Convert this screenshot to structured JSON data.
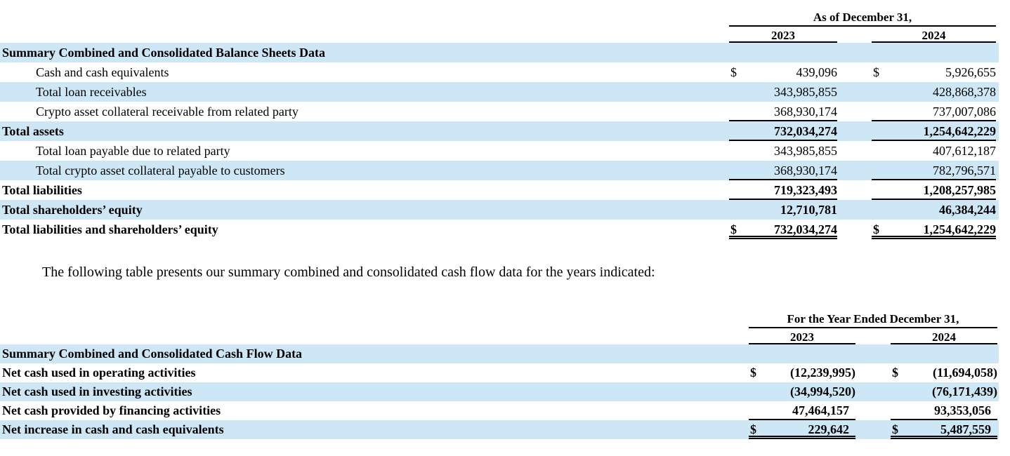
{
  "page": {
    "background": "#ffffff",
    "stripe_color": "#cde7f6",
    "text_color": "#000000"
  },
  "paragraph": "The following table presents our summary combined and consolidated cash flow data for the years indicated:",
  "balance_sheet": {
    "period_title": "As of December 31,",
    "columns": [
      "2023",
      "2024"
    ],
    "paren_align": false,
    "rows": [
      {
        "label": "Summary Combined and Consolidated Balance Sheets Data",
        "bold": true,
        "shade": true,
        "d1": "",
        "v1": "",
        "d2": "",
        "v2": "",
        "rule": "none",
        "indent": false
      },
      {
        "label": "Cash and cash equivalents",
        "bold": false,
        "shade": false,
        "d1": "$",
        "v1": "439,096",
        "d2": "$",
        "v2": "5,926,655",
        "rule": "none",
        "indent": true
      },
      {
        "label": "Total loan receivables",
        "bold": false,
        "shade": true,
        "d1": "",
        "v1": "343,985,855",
        "d2": "",
        "v2": "428,868,378",
        "rule": "none",
        "indent": true
      },
      {
        "label": "Crypto asset collateral receivable from related party",
        "bold": false,
        "shade": false,
        "d1": "",
        "v1": "368,930,174",
        "d2": "",
        "v2": "737,007,086",
        "rule": "single",
        "indent": true
      },
      {
        "label": "Total assets",
        "bold": true,
        "shade": true,
        "d1": "",
        "v1": "732,034,274",
        "d2": "",
        "v2": "1,254,642,229",
        "rule": "single",
        "indent": false
      },
      {
        "label": "Total loan payable due to related party",
        "bold": false,
        "shade": false,
        "d1": "",
        "v1": "343,985,855",
        "d2": "",
        "v2": "407,612,187",
        "rule": "none",
        "indent": true
      },
      {
        "label": "Total crypto asset collateral payable to customers",
        "bold": false,
        "shade": true,
        "d1": "",
        "v1": "368,930,174",
        "d2": "",
        "v2": "782,796,571",
        "rule": "single",
        "indent": true
      },
      {
        "label": "Total liabilities",
        "bold": true,
        "shade": false,
        "d1": "",
        "v1": "719,323,493",
        "d2": "",
        "v2": "1,208,257,985",
        "rule": "single",
        "indent": false
      },
      {
        "label": "Total shareholders’ equity",
        "bold": true,
        "shade": true,
        "d1": "",
        "v1": "12,710,781",
        "d2": "",
        "v2": "46,384,244",
        "rule": "none",
        "indent": false
      },
      {
        "label": "Total liabilities and shareholders’ equity",
        "bold": true,
        "shade": false,
        "d1": "$",
        "v1": "732,034,274",
        "d2": "$",
        "v2": "1,254,642,229",
        "rule": "double",
        "indent": false
      }
    ]
  },
  "cash_flow": {
    "period_title": "For the Year Ended December 31,",
    "columns": [
      "2023",
      "2024"
    ],
    "paren_align": true,
    "rows": [
      {
        "label": "Summary Combined and Consolidated Cash Flow Data",
        "bold": true,
        "shade": true,
        "d1": "",
        "v1": "",
        "d2": "",
        "v2": "",
        "rule": "none",
        "indent": false
      },
      {
        "label": "Net cash used in operating activities",
        "bold": true,
        "shade": false,
        "d1": "$",
        "v1": "(12,239,995)",
        "d2": "$",
        "v2": "(11,694,058)",
        "rule": "none",
        "indent": false
      },
      {
        "label": "Net cash used in investing activities",
        "bold": true,
        "shade": true,
        "d1": "",
        "v1": "(34,994,520)",
        "d2": "",
        "v2": "(76,171,439)",
        "rule": "none",
        "indent": false
      },
      {
        "label": "Net cash provided by financing activities",
        "bold": true,
        "shade": false,
        "d1": "",
        "v1": "47,464,157",
        "d2": "",
        "v2": "93,353,056",
        "rule": "single",
        "indent": false
      },
      {
        "label": "Net increase in cash and cash equivalents",
        "bold": true,
        "shade": true,
        "d1": "$",
        "v1": "229,642",
        "d2": "$",
        "v2": "5,487,559",
        "rule": "double",
        "indent": false
      }
    ]
  }
}
